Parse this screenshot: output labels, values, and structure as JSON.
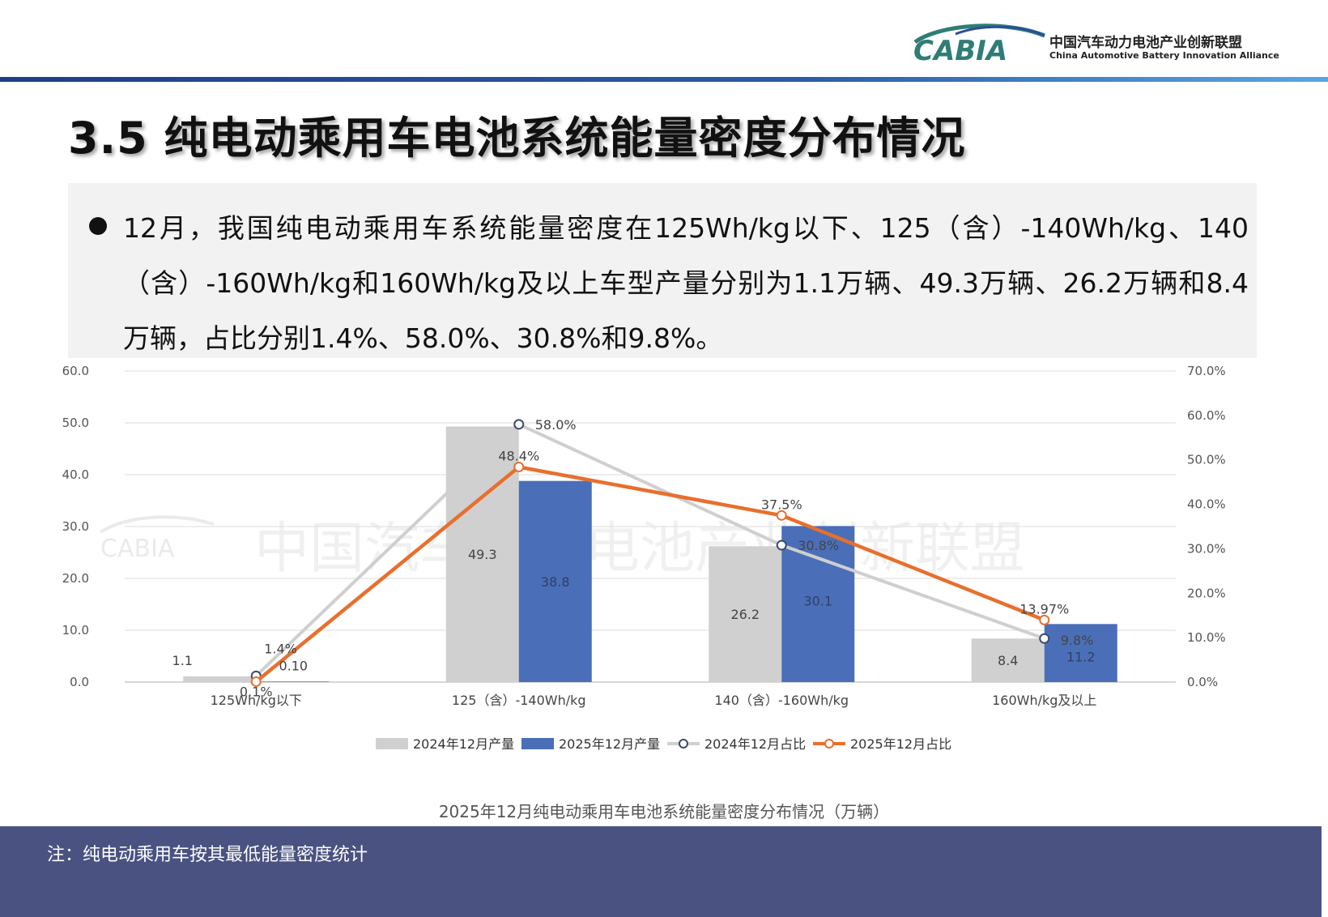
{
  "header": {
    "logo_text": "CABIA",
    "org_name_cn": "中国汽车动力电池产业创新联盟",
    "org_name_en": "China Automotive Battery Innovation Alliance"
  },
  "title": "3.5 纯电动乘用车电池系统能量密度分布情况",
  "paragraph": "12月，我国纯电动乘用车系统能量密度在125Wh/kg以下、125（含）-140Wh/kg、140（含）-160Wh/kg和160Wh/kg及以上车型产量分别为1.1万辆、49.3万辆、26.2万辆和8.4万辆，占比分别1.4%、58.0%、30.8%和9.8%。",
  "watermark": "中国汽车动力电池产业创新联盟",
  "caption": "2025年12月纯电动乘用车电池系统能量密度分布情况（万辆）",
  "footer_note": "注：纯电动乘用车按其最低能量密度统计",
  "colors": {
    "bar_2024": "#d0d0d0",
    "bar_2025": "#4a6fb8",
    "line_2024": "#cfcfcf",
    "line_2025": "#e86f2d",
    "footer": "#4a5282"
  },
  "chart_data": {
    "type": "bar+line",
    "categories": [
      "125Wh/kg以下",
      "125（含）-140Wh/kg",
      "140（含）-160Wh/kg",
      "160Wh/kg及以上"
    ],
    "series": [
      {
        "name": "2024年12月产量",
        "type": "bar",
        "axis": "left",
        "values": [
          1.1,
          49.3,
          26.2,
          8.4
        ],
        "labels": [
          "1.1",
          "49.3",
          "26.2",
          "8.4"
        ]
      },
      {
        "name": "2025年12月产量",
        "type": "bar",
        "axis": "left",
        "values": [
          0.1,
          38.8,
          30.1,
          11.2
        ],
        "labels": [
          "0.10",
          "38.8",
          "30.1",
          "11.2"
        ]
      },
      {
        "name": "2024年12月占比",
        "type": "line",
        "axis": "right",
        "values": [
          1.4,
          58.0,
          30.8,
          9.8
        ],
        "labels": [
          "1.4%",
          "58.0%",
          "30.8%",
          "9.8%"
        ]
      },
      {
        "name": "2025年12月占比",
        "type": "line",
        "axis": "right",
        "values": [
          0.1,
          48.4,
          37.5,
          13.97
        ],
        "labels": [
          "0.1%",
          "48.4%",
          "37.5%",
          "13.97%"
        ]
      }
    ],
    "y_left": {
      "ticks": [
        "0.0",
        "10.0",
        "20.0",
        "30.0",
        "40.0",
        "50.0",
        "60.0"
      ],
      "range": [
        0,
        60
      ]
    },
    "y_right": {
      "ticks": [
        "0.0%",
        "10.0%",
        "20.0%",
        "30.0%",
        "40.0%",
        "50.0%",
        "60.0%",
        "70.0%"
      ],
      "range": [
        0,
        70
      ]
    },
    "grid": true,
    "legend_position": "bottom"
  }
}
